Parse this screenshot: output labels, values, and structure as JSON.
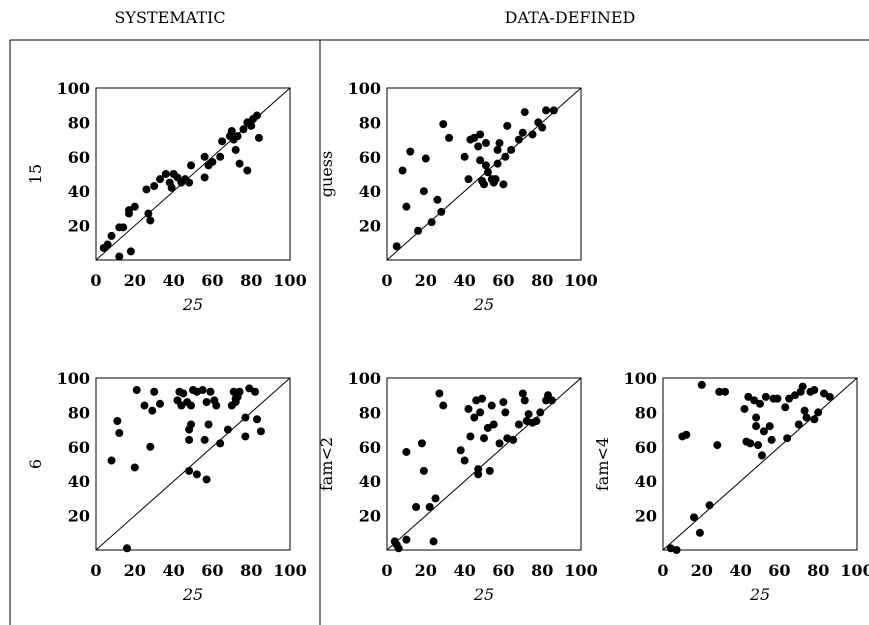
{
  "headers": {
    "left": "SYSTEMATIC",
    "right": "DATA-DEFINED"
  },
  "colors": {
    "marker": "#000000",
    "line": "#000000"
  },
  "chart_data": [
    {
      "type": "scatter",
      "id": "p15",
      "ylabel": "15",
      "xlabel": "25",
      "xlim": [
        0,
        100
      ],
      "ylim": [
        0,
        100
      ],
      "xticks": [
        "0",
        "20",
        "40",
        "60",
        "80",
        "100"
      ],
      "yticks": [
        "20",
        "40",
        "60",
        "80",
        "100"
      ],
      "diagonal": true,
      "points": [
        [
          4,
          7
        ],
        [
          6,
          9
        ],
        [
          8,
          14
        ],
        [
          12,
          2
        ],
        [
          12,
          19
        ],
        [
          14,
          19
        ],
        [
          17,
          27
        ],
        [
          17,
          29
        ],
        [
          18,
          5
        ],
        [
          20,
          31
        ],
        [
          26,
          41
        ],
        [
          27,
          27
        ],
        [
          28,
          23
        ],
        [
          30,
          43
        ],
        [
          33,
          47
        ],
        [
          36,
          50
        ],
        [
          38,
          45
        ],
        [
          39,
          42
        ],
        [
          40,
          50
        ],
        [
          42,
          48
        ],
        [
          44,
          45
        ],
        [
          46,
          47
        ],
        [
          48,
          45
        ],
        [
          49,
          55
        ],
        [
          56,
          48
        ],
        [
          56,
          60
        ],
        [
          58,
          55
        ],
        [
          60,
          57
        ],
        [
          64,
          60
        ],
        [
          65,
          69
        ],
        [
          69,
          72
        ],
        [
          70,
          75
        ],
        [
          71,
          70
        ],
        [
          72,
          64
        ],
        [
          73,
          72
        ],
        [
          74,
          56
        ],
        [
          76,
          76
        ],
        [
          78,
          52
        ],
        [
          78,
          80
        ],
        [
          80,
          78
        ],
        [
          81,
          82
        ],
        [
          83,
          84
        ],
        [
          84,
          71
        ]
      ]
    },
    {
      "type": "scatter",
      "id": "pguess",
      "ylabel": "guess",
      "xlabel": "25",
      "xlim": [
        0,
        100
      ],
      "ylim": [
        0,
        100
      ],
      "xticks": [
        "0",
        "20",
        "40",
        "60",
        "80",
        "100"
      ],
      "yticks": [
        "20",
        "40",
        "60",
        "80",
        "100"
      ],
      "diagonal": true,
      "points": [
        [
          5,
          8
        ],
        [
          8,
          52
        ],
        [
          10,
          31
        ],
        [
          12,
          63
        ],
        [
          16,
          17
        ],
        [
          19,
          40
        ],
        [
          20,
          59
        ],
        [
          23,
          22
        ],
        [
          26,
          35
        ],
        [
          28,
          28
        ],
        [
          29,
          79
        ],
        [
          32,
          71
        ],
        [
          40,
          60
        ],
        [
          42,
          47
        ],
        [
          43,
          70
        ],
        [
          45,
          71
        ],
        [
          47,
          66
        ],
        [
          48,
          73
        ],
        [
          48,
          58
        ],
        [
          49,
          46
        ],
        [
          50,
          44
        ],
        [
          51,
          68
        ],
        [
          51,
          55
        ],
        [
          52,
          51
        ],
        [
          54,
          47
        ],
        [
          55,
          45
        ],
        [
          56,
          47
        ],
        [
          57,
          56
        ],
        [
          57,
          64
        ],
        [
          58,
          68
        ],
        [
          60,
          44
        ],
        [
          61,
          60
        ],
        [
          62,
          78
        ],
        [
          64,
          64
        ],
        [
          68,
          70
        ],
        [
          70,
          74
        ],
        [
          71,
          86
        ],
        [
          75,
          73
        ],
        [
          78,
          80
        ],
        [
          80,
          77
        ],
        [
          82,
          87
        ],
        [
          86,
          87
        ]
      ]
    },
    {
      "type": "scatter",
      "id": "p6",
      "ylabel": "6",
      "xlabel": "25",
      "xlim": [
        0,
        100
      ],
      "ylim": [
        0,
        100
      ],
      "xticks": [
        "0",
        "20",
        "40",
        "60",
        "80",
        "100"
      ],
      "yticks": [
        "20",
        "40",
        "60",
        "80",
        "100"
      ],
      "diagonal": true,
      "points": [
        [
          8,
          52
        ],
        [
          11,
          75
        ],
        [
          12,
          68
        ],
        [
          16,
          1
        ],
        [
          20,
          48
        ],
        [
          21,
          93
        ],
        [
          25,
          84
        ],
        [
          28,
          60
        ],
        [
          29,
          81
        ],
        [
          30,
          92
        ],
        [
          33,
          85
        ],
        [
          42,
          87
        ],
        [
          43,
          92
        ],
        [
          44,
          84
        ],
        [
          45,
          91
        ],
        [
          47,
          86
        ],
        [
          48,
          64
        ],
        [
          48,
          70
        ],
        [
          48,
          46
        ],
        [
          49,
          73
        ],
        [
          49,
          84
        ],
        [
          50,
          93
        ],
        [
          52,
          92
        ],
        [
          52,
          44
        ],
        [
          55,
          93
        ],
        [
          56,
          64
        ],
        [
          57,
          86
        ],
        [
          57,
          41
        ],
        [
          58,
          73
        ],
        [
          59,
          92
        ],
        [
          61,
          87
        ],
        [
          62,
          84
        ],
        [
          64,
          62
        ],
        [
          68,
          70
        ],
        [
          70,
          84
        ],
        [
          71,
          92
        ],
        [
          72,
          88
        ],
        [
          72,
          86
        ],
        [
          73,
          89
        ],
        [
          74,
          92
        ],
        [
          77,
          77
        ],
        [
          77,
          66
        ],
        [
          79,
          94
        ],
        [
          82,
          92
        ],
        [
          83,
          76
        ],
        [
          85,
          69
        ]
      ]
    },
    {
      "type": "scatter",
      "id": "pfam2",
      "ylabel": "fam<2",
      "xlabel": "25",
      "xlim": [
        0,
        100
      ],
      "ylim": [
        0,
        100
      ],
      "xticks": [
        "0",
        "20",
        "40",
        "60",
        "80",
        "100"
      ],
      "yticks": [
        "20",
        "40",
        "60",
        "80",
        "100"
      ],
      "diagonal": true,
      "points": [
        [
          4,
          5
        ],
        [
          5,
          3
        ],
        [
          6,
          1
        ],
        [
          10,
          57
        ],
        [
          10,
          6
        ],
        [
          15,
          25
        ],
        [
          18,
          62
        ],
        [
          19,
          46
        ],
        [
          22,
          25
        ],
        [
          24,
          5
        ],
        [
          25,
          30
        ],
        [
          27,
          91
        ],
        [
          29,
          84
        ],
        [
          38,
          58
        ],
        [
          40,
          52
        ],
        [
          42,
          82
        ],
        [
          43,
          66
        ],
        [
          45,
          77
        ],
        [
          46,
          87
        ],
        [
          47,
          47
        ],
        [
          47,
          44
        ],
        [
          48,
          80
        ],
        [
          49,
          88
        ],
        [
          50,
          65
        ],
        [
          52,
          71
        ],
        [
          53,
          46
        ],
        [
          54,
          84
        ],
        [
          55,
          73
        ],
        [
          58,
          62
        ],
        [
          60,
          86
        ],
        [
          61,
          80
        ],
        [
          62,
          65
        ],
        [
          65,
          64
        ],
        [
          68,
          73
        ],
        [
          70,
          91
        ],
        [
          71,
          87
        ],
        [
          72,
          75
        ],
        [
          73,
          79
        ],
        [
          75,
          74
        ],
        [
          77,
          75
        ],
        [
          79,
          80
        ],
        [
          82,
          87
        ],
        [
          83,
          90
        ],
        [
          85,
          87
        ]
      ]
    },
    {
      "type": "scatter",
      "id": "pfam4",
      "ylabel": "fam<4",
      "xlabel": "25",
      "xlim": [
        0,
        100
      ],
      "ylim": [
        0,
        100
      ],
      "xticks": [
        "0",
        "20",
        "40",
        "60",
        "80",
        "100"
      ],
      "yticks": [
        "20",
        "40",
        "60",
        "80",
        "100"
      ],
      "diagonal": true,
      "points": [
        [
          4,
          1
        ],
        [
          7,
          0
        ],
        [
          10,
          66
        ],
        [
          12,
          67
        ],
        [
          16,
          19
        ],
        [
          19,
          10
        ],
        [
          20,
          96
        ],
        [
          24,
          26
        ],
        [
          28,
          61
        ],
        [
          29,
          92
        ],
        [
          32,
          92
        ],
        [
          42,
          82
        ],
        [
          43,
          63
        ],
        [
          44,
          89
        ],
        [
          45,
          62
        ],
        [
          47,
          87
        ],
        [
          48,
          72
        ],
        [
          48,
          77
        ],
        [
          49,
          61
        ],
        [
          50,
          85
        ],
        [
          51,
          55
        ],
        [
          52,
          69
        ],
        [
          53,
          89
        ],
        [
          55,
          72
        ],
        [
          56,
          64
        ],
        [
          57,
          88
        ],
        [
          59,
          88
        ],
        [
          63,
          83
        ],
        [
          64,
          65
        ],
        [
          65,
          88
        ],
        [
          68,
          90
        ],
        [
          70,
          73
        ],
        [
          71,
          92
        ],
        [
          72,
          95
        ],
        [
          73,
          81
        ],
        [
          74,
          77
        ],
        [
          76,
          92
        ],
        [
          78,
          76
        ],
        [
          78,
          93
        ],
        [
          80,
          80
        ],
        [
          83,
          91
        ],
        [
          86,
          89
        ]
      ]
    }
  ]
}
